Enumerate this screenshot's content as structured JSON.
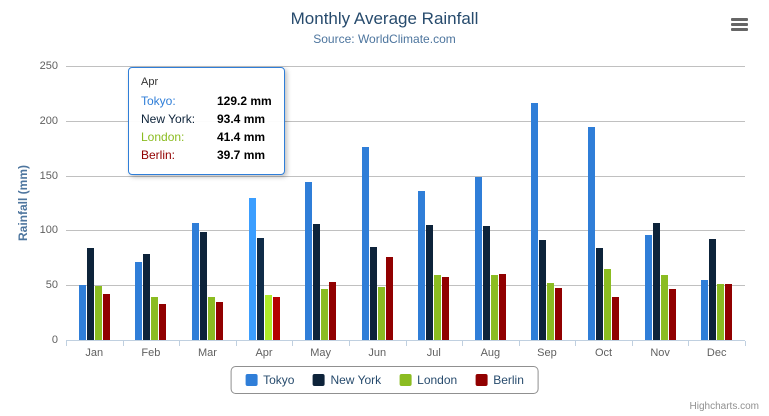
{
  "chart_data": {
    "type": "bar",
    "title": "Monthly Average Rainfall",
    "subtitle": "Source: WorldClimate.com",
    "xlabel": "",
    "ylabel": "Rainfall (mm)",
    "ylim": [
      0,
      250
    ],
    "yticks": [
      0,
      50,
      100,
      150,
      200,
      250
    ],
    "grid": true,
    "legend_position": "bottom",
    "value_suffix": " mm",
    "categories": [
      "Jan",
      "Feb",
      "Mar",
      "Apr",
      "May",
      "Jun",
      "Jul",
      "Aug",
      "Sep",
      "Oct",
      "Nov",
      "Dec"
    ],
    "series": [
      {
        "name": "Tokyo",
        "color": "#2f7ed8",
        "values": [
          49.9,
          71.5,
          106.4,
          129.2,
          144.0,
          176.0,
          135.6,
          148.5,
          216.4,
          194.1,
          95.6,
          54.4
        ]
      },
      {
        "name": "New York",
        "color": "#0d233a",
        "values": [
          83.6,
          78.8,
          98.5,
          93.4,
          106.0,
          84.5,
          105.0,
          104.3,
          91.2,
          83.5,
          106.6,
          92.3
        ]
      },
      {
        "name": "London",
        "color": "#8bbc21",
        "values": [
          48.9,
          38.8,
          39.3,
          41.4,
          47.0,
          48.3,
          59.0,
          59.6,
          52.4,
          65.2,
          59.3,
          51.2
        ]
      },
      {
        "name": "Berlin",
        "color": "#910000",
        "values": [
          42.4,
          33.2,
          34.5,
          39.7,
          52.6,
          75.5,
          57.4,
          60.4,
          47.6,
          39.1,
          46.8,
          51.1
        ]
      }
    ]
  },
  "tooltip": {
    "visible": true,
    "category": "Apr",
    "border_color": "#2f7ed8",
    "rows": [
      {
        "name": "Tokyo",
        "value": "129.2 mm",
        "color": "#2f7ed8"
      },
      {
        "name": "New York",
        "value": "93.4 mm",
        "color": "#0d233a"
      },
      {
        "name": "London",
        "value": "41.4 mm",
        "color": "#8bbc21"
      },
      {
        "name": "Berlin",
        "value": "39.7 mm",
        "color": "#910000"
      }
    ]
  },
  "legend": {
    "items": [
      {
        "label": "Tokyo",
        "color": "#2f7ed8"
      },
      {
        "label": "New York",
        "color": "#0d233a"
      },
      {
        "label": "London",
        "color": "#8bbc21"
      },
      {
        "label": "Berlin",
        "color": "#910000"
      }
    ]
  },
  "credits": {
    "label": "Highcharts.com"
  },
  "icons": {
    "context_menu": "hamburger-icon"
  }
}
